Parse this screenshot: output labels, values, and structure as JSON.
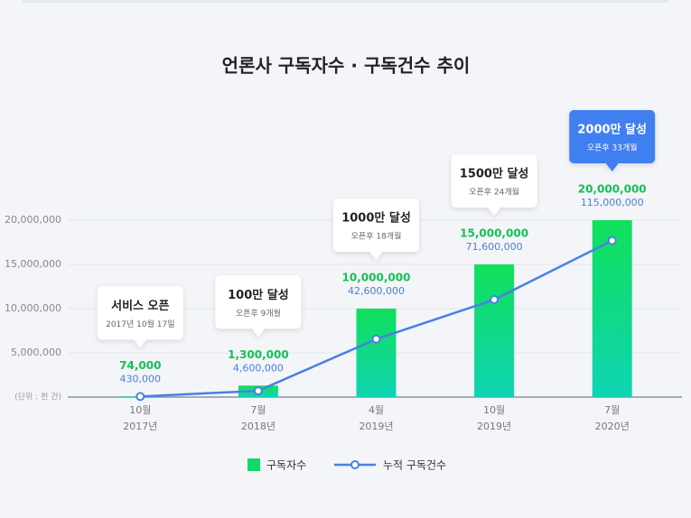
{
  "chart_data": {
    "type": "bar_line",
    "title": "언론사 구독자수 · 구독건수 추이",
    "categories": [
      [
        "10월",
        "2017년"
      ],
      [
        "7월",
        "2018년"
      ],
      [
        "4월",
        "2019년"
      ],
      [
        "10월",
        "2019년"
      ],
      [
        "7월",
        "2020년"
      ]
    ],
    "series": [
      {
        "name": "구독자수",
        "color": "#10d96a",
        "type": "bar",
        "values": [
          74000,
          1300000,
          10000000,
          15000000,
          20000000
        ],
        "value_labels": [
          "74,000",
          "1,300,000",
          "10,000,000",
          "15,000,000",
          "20,000,000"
        ]
      },
      {
        "name": "누적 구독건수",
        "color": "#4a80e6",
        "type": "line",
        "axis": "y2",
        "values": [
          430000,
          4600000,
          42600000,
          71600000,
          115000000
        ],
        "value_labels": [
          "430,000",
          "4,600,000",
          "42,600,000",
          "71,600,000",
          "115,000,000"
        ]
      }
    ],
    "annotations": [
      {
        "title": "서비스 오픈",
        "subtitle": "2017년 10월 17일"
      },
      {
        "title": "100만 달성",
        "subtitle": "오픈후 9개월"
      },
      {
        "title": "1000만 달성",
        "subtitle": "오픈후 18개월"
      },
      {
        "title": "1500만 달성",
        "subtitle": "오픈후 24개월"
      },
      {
        "title": "2000만 달성",
        "subtitle": "오픈후 33개월",
        "color": "#3f7ff0"
      }
    ],
    "ylim": [
      0,
      20000000
    ],
    "yticks": [
      {
        "value": 0,
        "label": "(단위 : 천 건)"
      },
      {
        "value": 5000000,
        "label": "5,000,000"
      },
      {
        "value": 10000000,
        "label": "10,000,000"
      },
      {
        "value": 15000000,
        "label": "15,000,000"
      },
      {
        "value": 20000000,
        "label": "20,000,000"
      }
    ],
    "y2lim": [
      0,
      130000000
    ],
    "grid": true
  }
}
